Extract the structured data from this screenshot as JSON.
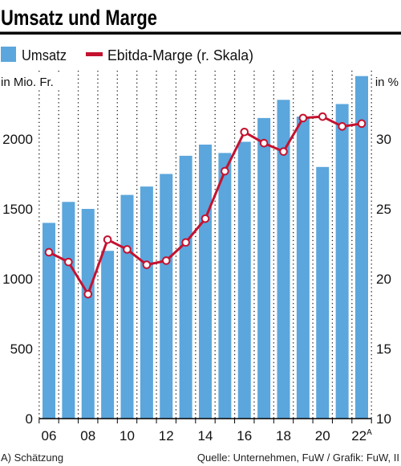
{
  "chart_data": {
    "type": "bar",
    "title": "Umsatz und Marge",
    "x": [
      2006,
      2007,
      2008,
      2009,
      2010,
      2011,
      2012,
      2013,
      2014,
      2015,
      2016,
      2017,
      2018,
      2019,
      2020,
      2021,
      2022
    ],
    "x_tick_labels": [
      {
        "x": 2006,
        "label": "06"
      },
      {
        "x": 2008,
        "label": "08"
      },
      {
        "x": 2010,
        "label": "10"
      },
      {
        "x": 2012,
        "label": "12"
      },
      {
        "x": 2014,
        "label": "14"
      },
      {
        "x": 2016,
        "label": "16"
      },
      {
        "x": 2018,
        "label": "18"
      },
      {
        "x": 2020,
        "label": "20"
      },
      {
        "x": 2022,
        "label": "22",
        "note": "A"
      }
    ],
    "series": [
      {
        "name": "Umsatz",
        "type": "bar",
        "axis": "left",
        "color": "#5ba6dc",
        "values": [
          1400,
          1550,
          1500,
          1200,
          1600,
          1660,
          1750,
          1880,
          1960,
          1900,
          1980,
          2150,
          2280,
          2160,
          1800,
          2250,
          2450
        ]
      },
      {
        "name": "Ebitda-Marge (r. Skala)",
        "type": "line",
        "axis": "right",
        "color": "#c4122f",
        "values": [
          21.9,
          21.2,
          18.9,
          22.8,
          22.1,
          21.0,
          21.3,
          22.6,
          24.3,
          27.7,
          30.5,
          29.7,
          29.1,
          31.5,
          31.6,
          30.9,
          31.1
        ]
      }
    ],
    "y_left": {
      "label": "in Mio. Fr.",
      "range": [
        0,
        2500
      ],
      "ticks": [
        0,
        500,
        1000,
        1500,
        2000
      ]
    },
    "y_right": {
      "label": "in %",
      "range": [
        10,
        35
      ],
      "ticks": [
        10,
        15,
        20,
        25,
        30
      ]
    },
    "grid": {
      "vertical": "dotted",
      "horizontal": false
    },
    "legend_position": "top-left"
  },
  "footnote": "A) Schätzung",
  "source": "Quelle: Unternehmen, FuW / Grafik: FuW, II"
}
